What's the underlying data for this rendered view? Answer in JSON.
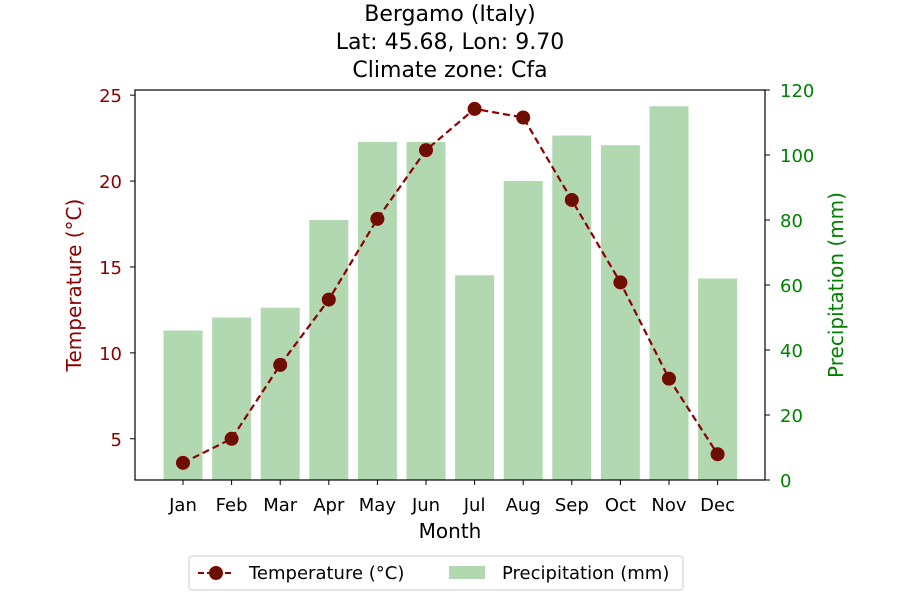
{
  "chart_data": {
    "type": "bar+line",
    "title_lines": [
      "Bergamo (Italy)",
      "Lat: 45.68, Lon: 9.70",
      "Climate zone: Cfa"
    ],
    "categories": [
      "Jan",
      "Feb",
      "Mar",
      "Apr",
      "May",
      "Jun",
      "Jul",
      "Aug",
      "Sep",
      "Oct",
      "Nov",
      "Dec"
    ],
    "xlabel": "Month",
    "y_left": {
      "label": "Temperature (°C)",
      "color": "#8b0000",
      "ylim": [
        2.6,
        25.3
      ],
      "ticks": [
        "5",
        "10",
        "15",
        "20",
        "25"
      ]
    },
    "y_right": {
      "label": "Precipitation (mm)",
      "color": "#008000",
      "ylim": [
        0,
        120
      ],
      "ticks": [
        "0",
        "20",
        "40",
        "60",
        "80",
        "100",
        "120"
      ]
    },
    "series": [
      {
        "name": "Temperature (°C)",
        "kind": "line",
        "axis": "left",
        "color": "#8b0000",
        "marker_color": "#6b0f00",
        "values": [
          3.6,
          5.0,
          9.3,
          13.1,
          17.8,
          21.8,
          24.2,
          23.7,
          18.9,
          14.1,
          8.5,
          4.1
        ]
      },
      {
        "name": "Precipitation (mm)",
        "kind": "bar",
        "axis": "right",
        "color": "#b2d8b2",
        "values": [
          46,
          50,
          53,
          80,
          104,
          104,
          63,
          92,
          106,
          103,
          115,
          62
        ]
      }
    ],
    "legend": {
      "placement": "bottom-center",
      "entries": [
        "Temperature (°C)",
        "Precipitation (mm)"
      ]
    },
    "grid": false
  }
}
